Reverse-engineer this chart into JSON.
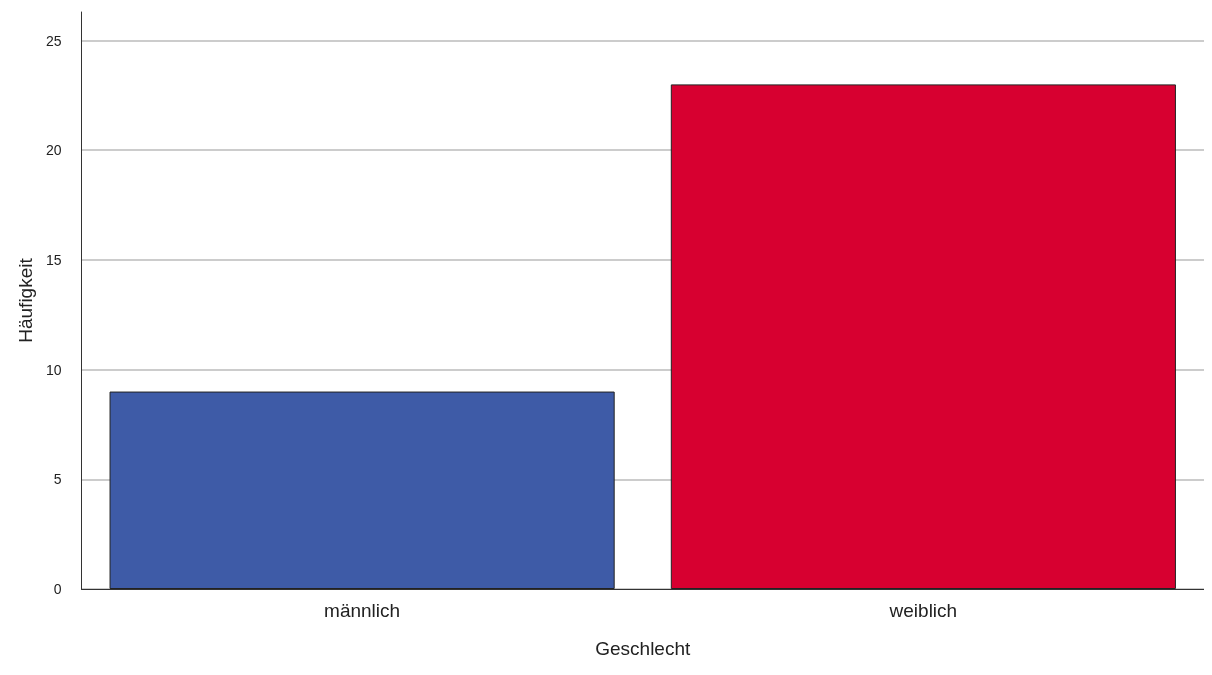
{
  "chart_data": {
    "type": "bar",
    "xlabel": "Geschlecht",
    "ylabel": "Häufigkeit",
    "categories": [
      "männlich",
      "weiblich"
    ],
    "values": [
      9,
      23
    ],
    "colors": [
      "#3e5ba7",
      "#d70030"
    ],
    "ylim": [
      0,
      26.3
    ],
    "yticks": [
      0,
      5,
      10,
      15,
      20,
      25
    ],
    "grid": "y"
  }
}
